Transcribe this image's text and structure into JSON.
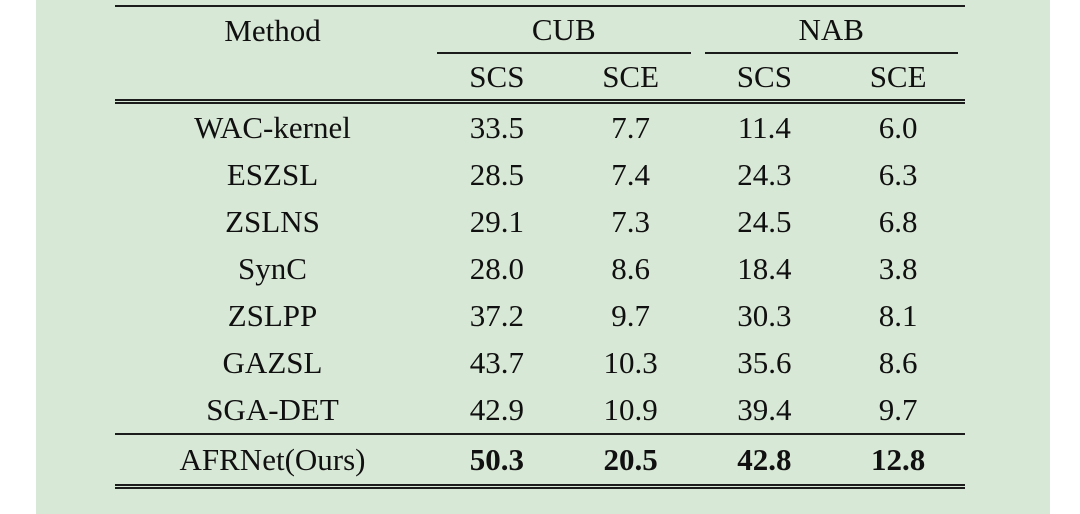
{
  "table": {
    "method_header": "Method",
    "groups": [
      {
        "label": "CUB"
      },
      {
        "label": "NAB"
      }
    ],
    "subheaders": [
      "SCS",
      "SCE",
      "SCS",
      "SCE"
    ],
    "rows": [
      {
        "method": "WAC-kernel",
        "values": [
          "33.5",
          "7.7",
          "11.4",
          "6.0"
        ]
      },
      {
        "method": "ESZSL",
        "values": [
          "28.5",
          "7.4",
          "24.3",
          "6.3"
        ]
      },
      {
        "method": "ZSLNS",
        "values": [
          "29.1",
          "7.3",
          "24.5",
          "6.8"
        ]
      },
      {
        "method": "SynC",
        "values": [
          "28.0",
          "8.6",
          "18.4",
          "3.8"
        ]
      },
      {
        "method": "ZSLPP",
        "values": [
          "37.2",
          "9.7",
          "30.3",
          "8.1"
        ]
      },
      {
        "method": "GAZSL",
        "values": [
          "43.7",
          "10.3",
          "35.6",
          "8.6"
        ]
      },
      {
        "method": "SGA-DET",
        "values": [
          "42.9",
          "10.9",
          "39.4",
          "9.7"
        ]
      },
      {
        "method": "AFRNet(Ours)",
        "values": [
          "50.3",
          "20.5",
          "42.8",
          "12.8"
        ]
      }
    ]
  },
  "colors": {
    "background_green": "#d8e8d6",
    "text": "#101010",
    "rule": "#1c1c1c"
  }
}
